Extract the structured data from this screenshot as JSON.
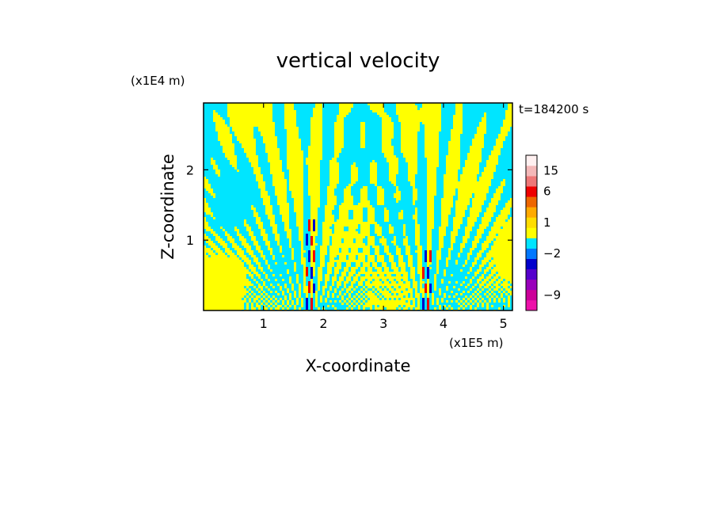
{
  "chart_data": {
    "type": "heatmap",
    "title": "vertical velocity",
    "xlabel": "X-coordinate",
    "ylabel": "Z-coordinate",
    "x_unit": "(x1E5 m)",
    "y_unit": "(x1E4 m)",
    "time_label": "t=184200 s",
    "xlim": [
      0,
      5.15
    ],
    "ylim": [
      0,
      2.95
    ],
    "x_ticks": [
      1,
      2,
      3,
      4,
      5
    ],
    "y_ticks": [
      1,
      2
    ],
    "colorbar": {
      "levels": [
        {
          "lo": -12,
          "hi": -9,
          "color": "#ee11aa"
        },
        {
          "lo": -9,
          "hi": -6,
          "color": "#cc0099"
        },
        {
          "lo": -6,
          "hi": -4,
          "color": "#9900bb"
        },
        {
          "lo": -4,
          "hi": -3,
          "color": "#5500cc"
        },
        {
          "lo": -3,
          "hi": -2,
          "color": "#0000cc"
        },
        {
          "lo": -2,
          "hi": -1,
          "color": "#0077ff"
        },
        {
          "lo": -1,
          "hi": 0,
          "color": "#00e5ff"
        },
        {
          "lo": 0,
          "hi": 1,
          "color": "#ffff00"
        },
        {
          "lo": 1,
          "hi": 2,
          "color": "#ffdd00"
        },
        {
          "lo": 2,
          "hi": 3,
          "color": "#ffaa00"
        },
        {
          "lo": 3,
          "hi": 6,
          "color": "#ee6600"
        },
        {
          "lo": 6,
          "hi": 10,
          "color": "#ee0000"
        },
        {
          "lo": 10,
          "hi": 15,
          "color": "#ee7777"
        },
        {
          "lo": 15,
          "hi": 20,
          "color": "#f4b8b8"
        },
        {
          "lo": 20,
          "hi": 30,
          "color": "#fff0f0"
        }
      ],
      "tick_labels": [
        "15",
        "6",
        "1",
        "−2",
        "−9"
      ],
      "tick_values": [
        15,
        6,
        1,
        -2,
        -9
      ]
    },
    "field_description_values": {
      "dominant_negative_color": "#00e5ff",
      "dominant_positive_color": "#ffff00",
      "strong_updraft_color": "#ee0000",
      "strong_downdraft_color": "#0000cc"
    }
  }
}
